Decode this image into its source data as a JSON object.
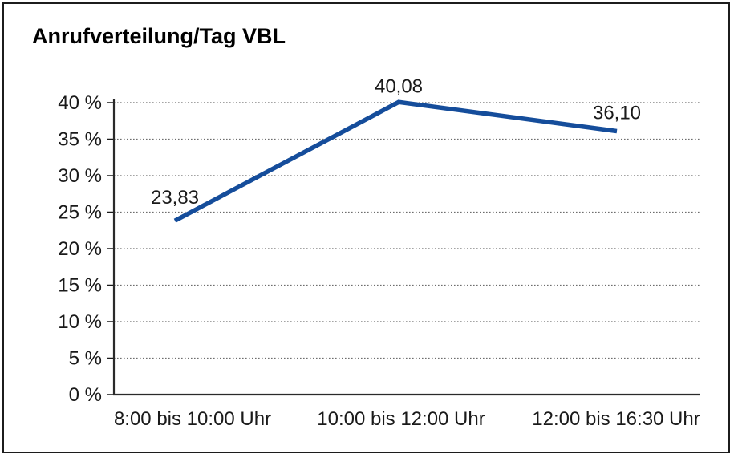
{
  "chart_data": {
    "type": "line",
    "title": "Anrufverteilung/Tag VBL",
    "categories": [
      "8:00 bis 10:00 Uhr",
      "10:00 bis 12:00 Uhr",
      "12:00 bis 16:30 Uhr"
    ],
    "values": [
      23.83,
      40.08,
      36.1
    ],
    "value_labels": [
      "23,83",
      "40,08",
      "36,10"
    ],
    "xlabel": "",
    "ylabel": "",
    "ylim": [
      0,
      40
    ],
    "y_step": 5,
    "y_tick_labels": [
      "0 %",
      "5 %",
      "10 %",
      "15 %",
      "20 %",
      "25 %",
      "30 %",
      "35 %",
      "40 %"
    ],
    "grid": "horizontal-dotted",
    "legend_position": "none",
    "line_color": "#154D9B",
    "axis_color": "#1a1a1a",
    "frame_color": "#1c1c1c"
  }
}
